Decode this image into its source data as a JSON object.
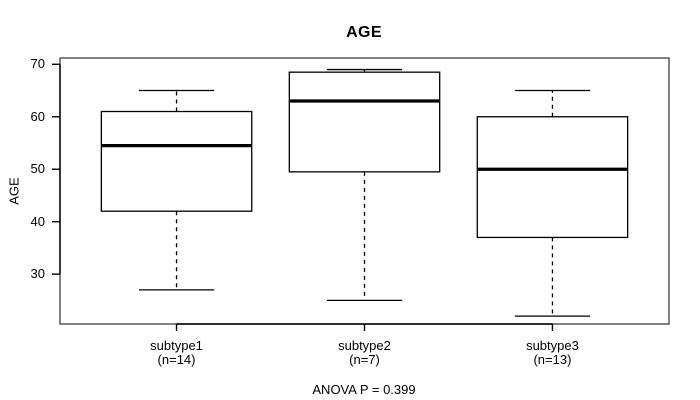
{
  "window": {
    "background": "#ffffff"
  },
  "chart_data": {
    "type": "boxplot",
    "title": "AGE",
    "ylabel": "AGE",
    "xlabel": "",
    "annotation": "ANOVA P = 0.399",
    "ylim": [
      20.5,
      71.2
    ],
    "yticks": [
      30,
      40,
      50,
      60,
      70
    ],
    "categories": [
      "subtype1",
      "subtype2",
      "subtype3"
    ],
    "category_sublabels": [
      "(n=14)",
      "(n=7)",
      "(n=13)"
    ],
    "series": [
      {
        "name": "subtype1",
        "n": 14,
        "whisker_low": 27,
        "q1": 42,
        "median": 54.5,
        "q3": 61,
        "whisker_high": 65
      },
      {
        "name": "subtype2",
        "n": 7,
        "whisker_low": 25,
        "q1": 49.5,
        "median": 63,
        "q3": 68.5,
        "whisker_high": 69
      },
      {
        "name": "subtype3",
        "n": 13,
        "whisker_low": 22,
        "q1": 37,
        "median": 50,
        "q3": 60,
        "whisker_high": 65
      }
    ],
    "grid": false,
    "legend": false,
    "whisker_style": "dashed",
    "colors": {
      "box_fill": "#ffffff",
      "line": "#000000",
      "frame": "#4d4d4d",
      "background": "#ffffff"
    }
  }
}
